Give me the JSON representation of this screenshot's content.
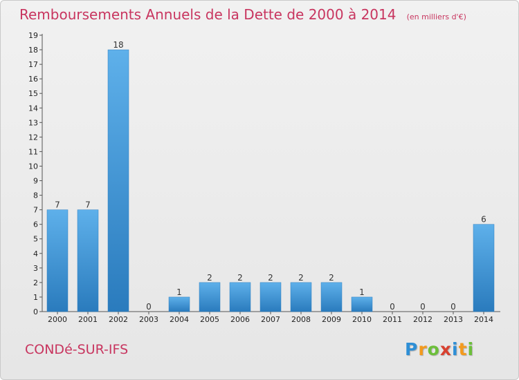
{
  "header": {
    "title": "Remboursements Annuels de la Dette de 2000 à 2014",
    "unit": "(en milliers d'€)"
  },
  "footer": {
    "commune": "CONDé-SUR-IFS",
    "logo_letters": [
      "P",
      "r",
      "o",
      "x",
      "i",
      "t",
      "i"
    ],
    "logo_colors": [
      "#2e8fd6",
      "#f39a1e",
      "#6cbf3a",
      "#d8402f",
      "#2e8fd6",
      "#f39a1e",
      "#6cbf3a"
    ]
  },
  "chart_data": {
    "type": "bar",
    "title": "Remboursements Annuels de la Dette de 2000 à 2014",
    "categories": [
      "2000",
      "2001",
      "2002",
      "2003",
      "2004",
      "2005",
      "2006",
      "2007",
      "2008",
      "2009",
      "2010",
      "2011",
      "2012",
      "2013",
      "2014"
    ],
    "values": [
      7,
      7,
      18,
      0,
      1,
      2,
      2,
      2,
      2,
      2,
      1,
      0,
      0,
      0,
      6
    ],
    "data_labels": [
      "7",
      "7",
      "18",
      "0",
      "1",
      "2",
      "2",
      "2",
      "2",
      "2",
      "1",
      "0",
      "0",
      "0",
      "6"
    ],
    "yticks": [
      "0",
      "1",
      "2",
      "3",
      "4",
      "5",
      "6",
      "7",
      "8",
      "9",
      "10",
      "11",
      "12",
      "13",
      "14",
      "15",
      "16",
      "17",
      "18",
      "19"
    ],
    "ylim": [
      0,
      19
    ],
    "grid": false,
    "bar_color": "#4a9fdf"
  }
}
